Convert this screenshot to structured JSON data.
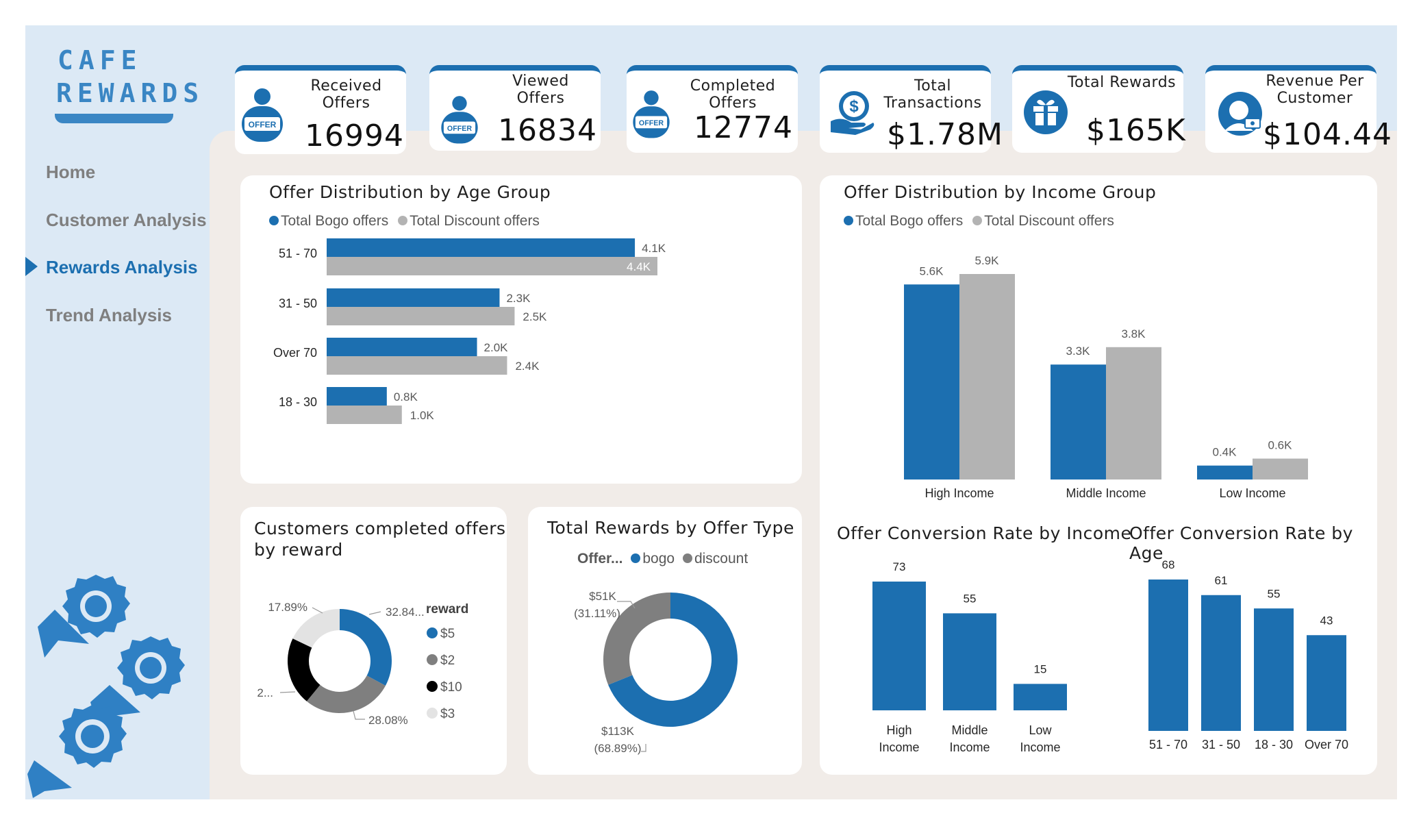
{
  "brand": {
    "line1": "CAFE",
    "line2": "REWARDS"
  },
  "nav": [
    {
      "label": "Home",
      "active": false
    },
    {
      "label": "Customer Analysis",
      "active": false
    },
    {
      "label": "Rewards Analysis",
      "active": true
    },
    {
      "label": "Trend Analysis",
      "active": false
    }
  ],
  "kpis": [
    {
      "label_1": "Received",
      "label_2": "Offers",
      "value": "16994",
      "icon": "offer-robot-icon"
    },
    {
      "label_1": "Viewed",
      "label_2": "Offers",
      "value": "16834",
      "icon": "offer-robot-icon"
    },
    {
      "label_1": "Completed Offers",
      "label_2": "",
      "value": "12774",
      "icon": "offer-robot-icon"
    },
    {
      "label_1": "Total",
      "label_2": "Transactions",
      "value": "$1.78M",
      "icon": "dollar-hand-icon"
    },
    {
      "label_1": "Total Rewards",
      "label_2": "",
      "value": "$165K",
      "icon": "gift-icon"
    },
    {
      "label_1": "Revenue Per",
      "label_2": "Customer",
      "value": "$104.44",
      "icon": "customer-icon"
    }
  ],
  "colors": {
    "bogo": "#1c6fb0",
    "discount": "#b3b3b3",
    "accent": "#1c6fb0"
  },
  "legends": {
    "bogo_offers": "Total Bogo offers",
    "discount_offers": "Total Discount offers"
  },
  "chart_data": [
    {
      "id": "age",
      "type": "bar",
      "orientation": "horizontal",
      "title": "Offer Distribution by Age Group",
      "categories": [
        "51 - 70",
        "31 - 50",
        "Over 70",
        "18 - 30"
      ],
      "series": [
        {
          "name": "Total Bogo offers",
          "values": [
            4.1,
            2.3,
            2.0,
            0.8
          ],
          "labels": [
            "4.1K",
            "2.3K",
            "2.0K",
            "0.8K"
          ]
        },
        {
          "name": "Total Discount offers",
          "values": [
            4.4,
            2.5,
            2.4,
            1.0
          ],
          "labels": [
            "4.4K",
            "2.5K",
            "2.4K",
            "1.0K"
          ]
        }
      ]
    },
    {
      "id": "income",
      "type": "bar",
      "title": "Offer Distribution by Income Group",
      "categories": [
        "High Income",
        "Middle Income",
        "Low Income"
      ],
      "series": [
        {
          "name": "Total Bogo offers",
          "values": [
            5.6,
            3.3,
            0.4
          ],
          "labels": [
            "5.6K",
            "3.3K",
            "0.4K"
          ]
        },
        {
          "name": "Total Discount offers",
          "values": [
            5.9,
            3.8,
            0.6
          ],
          "labels": [
            "5.9K",
            "3.8K",
            "0.6K"
          ]
        }
      ]
    },
    {
      "id": "reward",
      "type": "pie",
      "donut": true,
      "title": "Customers completed offers by reward",
      "title_line1": "Customers completed offers",
      "title_line2": "by reward",
      "legend_title": "reward",
      "slices": [
        {
          "name": "$5",
          "value": 32.84,
          "label": "32.84...",
          "color": "#1c6fb0"
        },
        {
          "name": "$2",
          "value": 28.08,
          "label": "28.08%",
          "color": "#7f7f7f"
        },
        {
          "name": "$10",
          "value": 21.19,
          "label": "2...",
          "color": "#000000"
        },
        {
          "name": "$3",
          "value": 17.89,
          "label": "17.89%",
          "color": "#e3e3e3"
        }
      ]
    },
    {
      "id": "rewards_type",
      "type": "pie",
      "donut": true,
      "title": "Total Rewards by Offer Type",
      "legend_title": "Offer...",
      "slices": [
        {
          "name": "bogo",
          "value": 68.89,
          "label_1": "$113K",
          "label_2": "(68.89%)",
          "color": "#1c6fb0"
        },
        {
          "name": "discount",
          "value": 31.11,
          "label_1": "$51K",
          "label_2": "(31.11%)",
          "color": "#7f7f7f"
        }
      ]
    },
    {
      "id": "conv_income",
      "type": "bar",
      "title": "Offer Conversion Rate by Income",
      "categories": [
        "High Income",
        "Middle Income",
        "Low Income"
      ],
      "category_lines": [
        [
          "High",
          "Income"
        ],
        [
          "Middle",
          "Income"
        ],
        [
          "Low",
          "Income"
        ]
      ],
      "values": [
        73,
        55,
        15
      ]
    },
    {
      "id": "conv_age",
      "type": "bar",
      "title": "Offer Conversion Rate by Age",
      "categories": [
        "51 - 70",
        "31 - 50",
        "18 - 30",
        "Over 70"
      ],
      "values": [
        68,
        61,
        55,
        43
      ]
    }
  ]
}
